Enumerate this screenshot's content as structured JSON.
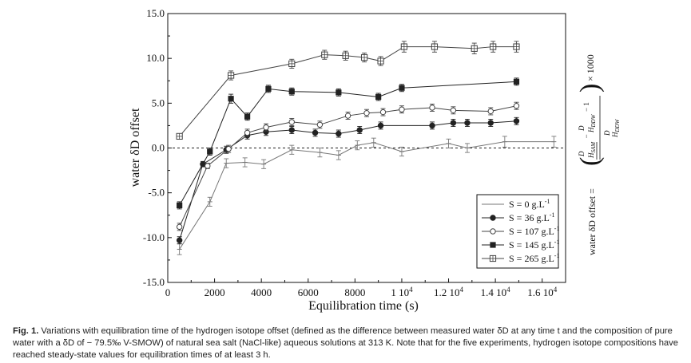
{
  "chart_data": {
    "type": "line",
    "xlabel": "Equilibration time (s)",
    "ylabel": "water δD offset",
    "xlim": [
      0,
      17000
    ],
    "ylim": [
      -15,
      15
    ],
    "x_ticks": [
      {
        "v": 0,
        "label": "0"
      },
      {
        "v": 2000,
        "label": "2000"
      },
      {
        "v": 4000,
        "label": "4000"
      },
      {
        "v": 6000,
        "label": "6000"
      },
      {
        "v": 8000,
        "label": "8000"
      },
      {
        "v": 10000,
        "label": "1 10",
        "sup": "4"
      },
      {
        "v": 12000,
        "label": "1.2 10",
        "sup": "4"
      },
      {
        "v": 14000,
        "label": "1.4 10",
        "sup": "4"
      },
      {
        "v": 16000,
        "label": "1.6 10",
        "sup": "4"
      }
    ],
    "y_ticks": [
      {
        "v": -15,
        "label": "-15.0"
      },
      {
        "v": -10,
        "label": "-10.0"
      },
      {
        "v": -5,
        "label": "-5.0"
      },
      {
        "v": 0,
        "label": "0.0"
      },
      {
        "v": 5,
        "label": "5.0"
      },
      {
        "v": 10,
        "label": "10.0"
      },
      {
        "v": 15,
        "label": "15.0"
      }
    ],
    "zero_line": true,
    "grid": false,
    "legend_position": "bottom-right",
    "series": [
      {
        "name": "S = 0 g.L",
        "sup": "-1",
        "marker": "bar",
        "color": "#777777",
        "x": [
          500,
          1800,
          2500,
          3300,
          4100,
          5300,
          6500,
          7300,
          8100,
          8800,
          10000,
          12000,
          12800,
          14400,
          16500
        ],
        "y": [
          -11.3,
          -6.0,
          -1.7,
          -1.6,
          -1.8,
          -0.2,
          -0.5,
          -0.8,
          0.3,
          0.6,
          -0.4,
          0.5,
          0.0,
          0.7,
          0.7
        ],
        "err": [
          0.6,
          0.5,
          0.5,
          0.5,
          0.5,
          0.5,
          0.5,
          0.5,
          0.5,
          0.5,
          0.5,
          0.5,
          0.5,
          0.6,
          0.6
        ]
      },
      {
        "name": "S = 36 g.L",
        "sup": "-1",
        "marker": "circle-filled",
        "color": "#222222",
        "x": [
          500,
          1500,
          2500,
          3400,
          4200,
          5300,
          6300,
          7300,
          8200,
          9100,
          11300,
          12200,
          12800,
          13800,
          14900
        ],
        "y": [
          -10.3,
          -1.8,
          -0.2,
          1.4,
          1.8,
          2.0,
          1.7,
          1.6,
          2.0,
          2.5,
          2.5,
          2.8,
          2.8,
          2.8,
          3.0
        ],
        "err": [
          0.4,
          0.3,
          0.4,
          0.4,
          0.4,
          0.4,
          0.4,
          0.4,
          0.4,
          0.4,
          0.4,
          0.4,
          0.4,
          0.4,
          0.4
        ]
      },
      {
        "name": "S = 107 g.L",
        "sup": "-1",
        "marker": "circle-open",
        "color": "#444444",
        "x": [
          500,
          1700,
          2600,
          3400,
          4200,
          5300,
          6500,
          7700,
          8500,
          9200,
          10000,
          11300,
          12200,
          13800,
          14900
        ],
        "y": [
          -8.8,
          -2.0,
          -0.1,
          1.7,
          2.3,
          2.9,
          2.6,
          3.6,
          3.9,
          4.0,
          4.3,
          4.5,
          4.2,
          4.1,
          4.7
        ],
        "err": [
          0.4,
          0.3,
          0.4,
          0.4,
          0.4,
          0.4,
          0.4,
          0.4,
          0.4,
          0.4,
          0.4,
          0.4,
          0.4,
          0.4,
          0.4
        ]
      },
      {
        "name": "S = 145 g.L",
        "sup": "-1",
        "marker": "square-filled",
        "color": "#222222",
        "x": [
          500,
          1800,
          2700,
          3400,
          4300,
          5300,
          7300,
          9000,
          10000,
          14900
        ],
        "y": [
          -6.4,
          -0.4,
          5.5,
          3.5,
          6.6,
          6.3,
          6.2,
          5.7,
          6.7,
          7.4
        ],
        "err": [
          0.4,
          0.4,
          0.5,
          0.4,
          0.4,
          0.4,
          0.4,
          0.4,
          0.4,
          0.4
        ]
      },
      {
        "name": "S = 265 g.L",
        "sup": "-1",
        "marker": "square-cross",
        "color": "#444444",
        "x": [
          500,
          2700,
          5300,
          6700,
          7600,
          8400,
          9100,
          10100,
          11400,
          13100,
          13900,
          14900
        ],
        "y": [
          1.3,
          8.1,
          9.4,
          10.4,
          10.3,
          10.1,
          9.7,
          11.3,
          11.3,
          11.1,
          11.3,
          11.3
        ],
        "err": [
          0.3,
          0.5,
          0.5,
          0.5,
          0.5,
          0.5,
          0.5,
          0.6,
          0.6,
          0.6,
          0.6,
          0.6
        ]
      }
    ]
  },
  "formula": {
    "left": "water δD offset =",
    "num_top": "D",
    "num_sub1": "H",
    "num_sub1b": "SAM",
    "minus": "−",
    "den_top": "D",
    "den_sub": "H",
    "den_subb": "DDW",
    "minus_one": "− 1",
    "times": "× 1000"
  },
  "caption": {
    "fig_label": "Fig. 1.",
    "text": " Variations with equilibration time of the hydrogen isotope offset (defined as the difference between measured water δD at any time t and the composition of pure water with a δD of − 79.5‰ V-SMOW) of natural sea salt (NaCl-like) aqueous solutions at 313 K. Note that for the five experiments, hydrogen isotope compositions have reached steady-state values for equilibration times of at least 3 h."
  }
}
